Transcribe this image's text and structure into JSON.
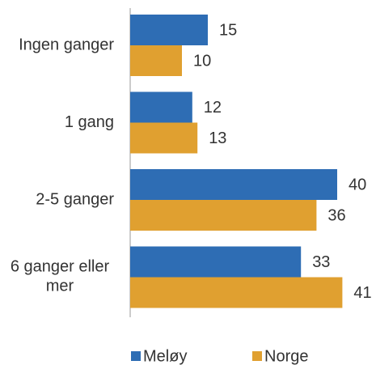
{
  "chart_data": {
    "type": "hbar",
    "categories": [
      "Ingen ganger",
      "1 gang",
      "2-5 ganger",
      "6 ganger eller mer"
    ],
    "series": [
      {
        "name": "Meløy",
        "color": "#2e6db4",
        "values": [
          15,
          12,
          40,
          33
        ]
      },
      {
        "name": "Norge",
        "color": "#e0a030",
        "values": [
          10,
          13,
          36,
          41
        ]
      }
    ],
    "xlim": [
      0,
      40
    ],
    "legend": "bottom"
  }
}
